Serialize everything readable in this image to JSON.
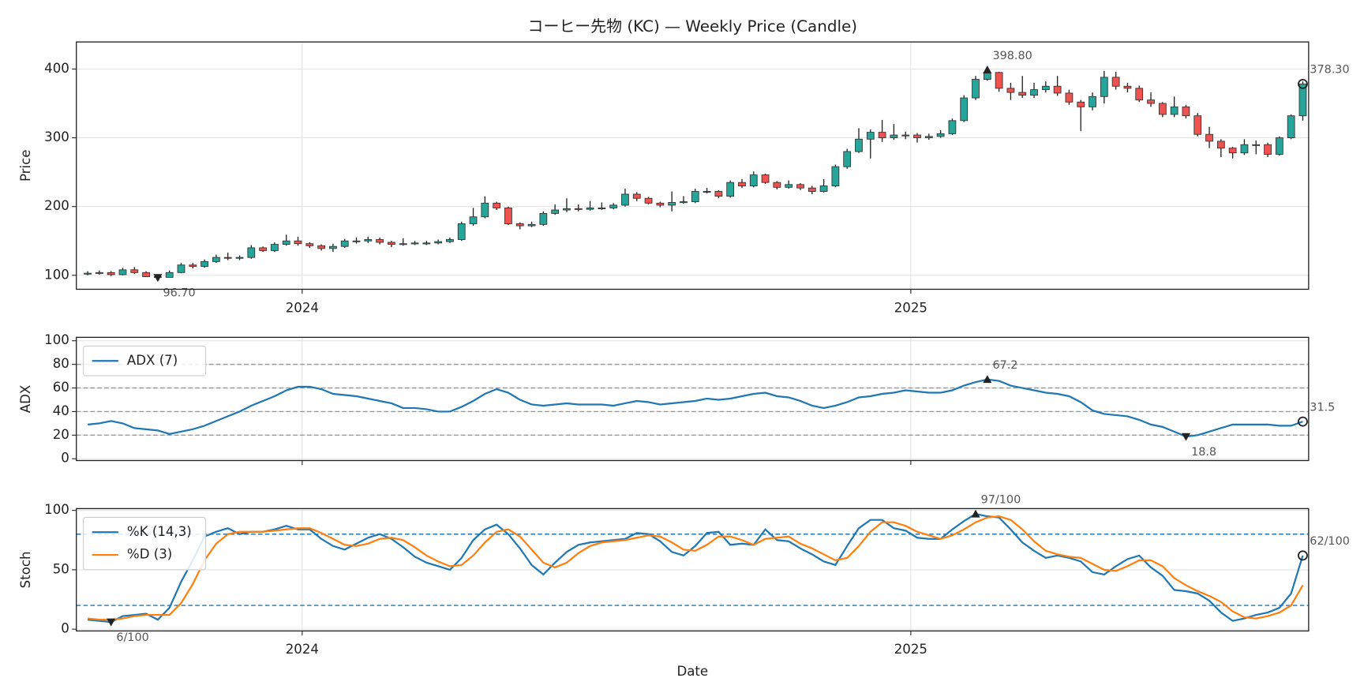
{
  "chart_data": [
    {
      "type": "candlestick",
      "title": "コーヒー先物 (KC) — Weekly Price (Candle)",
      "ylabel": "Price",
      "x": [
        0,
        1,
        2,
        3,
        4,
        5,
        6,
        7,
        8,
        9,
        10,
        11,
        12,
        13,
        14,
        15,
        16,
        17,
        18,
        19,
        20,
        21,
        22,
        23,
        24,
        25,
        26,
        27,
        28,
        29,
        30,
        31,
        32,
        33,
        34,
        35,
        36,
        37,
        38,
        39,
        40,
        41,
        42,
        43,
        44,
        45,
        46,
        47,
        48,
        49,
        50,
        51,
        52,
        53,
        54,
        55,
        56,
        57,
        58,
        59,
        60,
        61,
        62,
        63,
        64,
        65,
        66,
        67,
        68,
        69,
        70,
        71,
        72,
        73,
        74,
        75,
        76,
        77,
        78,
        79,
        80,
        81,
        82,
        83,
        84,
        85,
        86,
        87,
        88,
        89,
        90,
        91,
        92,
        93,
        94,
        95,
        96,
        97,
        98,
        99,
        100,
        101,
        102,
        103,
        104
      ],
      "open": [
        102,
        103,
        104,
        101,
        108,
        104,
        98,
        97,
        104,
        115,
        113,
        120,
        126,
        125,
        126,
        140,
        136,
        145,
        150,
        146,
        143,
        139,
        142,
        150,
        150,
        152,
        148,
        145,
        146,
        147,
        147,
        149,
        152,
        175,
        185,
        205,
        198,
        175,
        172,
        174,
        190,
        195,
        197,
        196,
        198,
        198,
        202,
        218,
        212,
        205,
        202,
        206,
        207,
        222,
        222,
        215,
        235,
        230,
        246,
        235,
        228,
        232,
        227,
        222,
        230,
        258,
        280,
        298,
        308,
        300,
        304,
        304,
        300,
        302,
        306,
        325,
        358,
        385,
        395,
        372,
        366,
        362,
        370,
        375,
        365,
        352,
        345,
        360,
        388,
        375,
        372,
        355,
        350,
        334,
        345,
        332,
        305,
        295,
        285,
        278,
        290,
        290,
        276,
        300,
        332
      ],
      "high": [
        106,
        107,
        106,
        111,
        112,
        106,
        100,
        107,
        118,
        118,
        123,
        130,
        133,
        129,
        144,
        142,
        148,
        159,
        156,
        148,
        145,
        146,
        153,
        155,
        156,
        155,
        150,
        154,
        150,
        150,
        152,
        155,
        178,
        198,
        215,
        207,
        200,
        177,
        178,
        193,
        203,
        212,
        203,
        208,
        206,
        205,
        226,
        221,
        214,
        207,
        222,
        215,
        226,
        227,
        224,
        238,
        240,
        251,
        248,
        237,
        238,
        234,
        230,
        240,
        261,
        284,
        314,
        312,
        326,
        320,
        309,
        307,
        306,
        311,
        328,
        362,
        390,
        398.8,
        396,
        380,
        390,
        380,
        382,
        390,
        370,
        355,
        366,
        397,
        396,
        380,
        376,
        366,
        352,
        360,
        348,
        336,
        316,
        298,
        287,
        298,
        296,
        293,
        302,
        334,
        382
      ],
      "low": [
        100,
        101,
        99,
        100,
        102,
        97.5,
        96.7,
        97.2,
        103,
        110,
        111,
        118,
        122,
        122,
        124,
        134,
        134,
        143,
        143,
        140,
        136,
        134,
        140,
        146,
        147,
        145,
        141,
        143,
        144,
        144,
        145,
        147,
        150,
        172,
        183,
        195,
        173,
        167,
        170,
        172,
        188,
        192,
        193,
        194,
        195,
        196,
        200,
        208,
        203,
        199,
        193,
        204,
        205,
        219,
        212,
        213,
        227,
        228,
        233,
        225,
        226,
        224,
        218,
        220,
        228,
        255,
        278,
        270,
        294,
        297,
        298,
        293,
        297,
        300,
        304,
        323,
        355,
        383,
        367,
        355,
        358,
        358,
        366,
        361,
        348,
        310,
        340,
        350,
        370,
        366,
        352,
        345,
        330,
        330,
        328,
        302,
        285,
        272,
        270,
        275,
        276,
        272,
        274,
        298,
        325
      ],
      "close": [
        103,
        104,
        101,
        108,
        104,
        98,
        97,
        104,
        115,
        113,
        120,
        126,
        125,
        126,
        140,
        136,
        145,
        150,
        146,
        143,
        139,
        142,
        150,
        150,
        152,
        148,
        145,
        146,
        147,
        147,
        149,
        152,
        175,
        185,
        205,
        198,
        175,
        172,
        174,
        190,
        195,
        197,
        196,
        198,
        198,
        202,
        218,
        212,
        205,
        202,
        206,
        207,
        222,
        222,
        215,
        235,
        230,
        246,
        235,
        228,
        232,
        227,
        222,
        230,
        258,
        280,
        298,
        308,
        300,
        304,
        304,
        300,
        302,
        306,
        325,
        358,
        385,
        395,
        372,
        366,
        362,
        370,
        375,
        365,
        352,
        345,
        360,
        388,
        375,
        372,
        355,
        350,
        334,
        345,
        332,
        305,
        295,
        285,
        278,
        290,
        290,
        276,
        300,
        332,
        378.3
      ],
      "up_color": "#26a69a",
      "down_color": "#ef5350",
      "xlim": [
        -0.97,
        104.5
      ],
      "xticks": [
        {
          "value": 18.36,
          "label": "2024"
        },
        {
          "value": 70.45,
          "label": "2025"
        }
      ],
      "ylim": [
        79.7,
        439.4
      ],
      "yticks": [
        100,
        200,
        300,
        400
      ],
      "grid": true,
      "annotations": [
        {
          "x": 6,
          "y": 96.7,
          "label": "96.70",
          "marker": "v"
        },
        {
          "x": 77,
          "y": 398.8,
          "label": "398.80",
          "marker": "^"
        },
        {
          "x": 104,
          "y": 378.3,
          "label": "378.30",
          "marker": "o"
        }
      ]
    },
    {
      "type": "line",
      "ylabel": "ADX",
      "x": [
        0,
        1,
        2,
        3,
        4,
        5,
        6,
        7,
        8,
        9,
        10,
        11,
        12,
        13,
        14,
        15,
        16,
        17,
        18,
        19,
        20,
        21,
        22,
        23,
        24,
        25,
        26,
        27,
        28,
        29,
        30,
        31,
        32,
        33,
        34,
        35,
        36,
        37,
        38,
        39,
        40,
        41,
        42,
        43,
        44,
        45,
        46,
        47,
        48,
        49,
        50,
        51,
        52,
        53,
        54,
        55,
        56,
        57,
        58,
        59,
        60,
        61,
        62,
        63,
        64,
        65,
        66,
        67,
        68,
        69,
        70,
        71,
        72,
        73,
        74,
        75,
        76,
        77,
        78,
        79,
        80,
        81,
        82,
        83,
        84,
        85,
        86,
        87,
        88,
        89,
        90,
        91,
        92,
        93,
        94,
        95,
        96,
        97,
        98,
        99,
        100,
        101,
        102,
        103,
        104
      ],
      "series": [
        {
          "name": "ADX (7)",
          "color": "#1f77b4",
          "values": [
            29,
            30,
            32,
            30,
            26,
            25,
            24,
            21,
            23,
            25,
            28,
            32,
            36,
            40,
            45,
            49,
            53,
            58,
            61,
            61,
            59,
            55,
            54,
            53,
            51,
            49,
            47,
            43,
            43,
            42,
            40,
            40,
            44,
            49,
            55,
            59,
            56,
            50,
            46,
            45,
            46,
            47,
            46,
            46,
            46,
            45,
            47,
            49,
            48,
            46,
            47,
            48,
            49,
            51,
            50,
            51,
            53,
            55,
            56,
            53,
            52,
            49,
            45,
            43,
            45,
            48,
            52,
            53,
            55,
            56,
            58,
            57,
            56,
            56,
            58,
            62,
            65,
            67.2,
            66,
            62,
            60,
            58,
            56,
            55,
            53,
            48,
            41,
            38,
            37,
            36,
            33,
            29,
            27,
            23,
            18.8,
            20,
            23,
            26,
            29,
            29,
            29,
            29,
            28,
            28,
            31.5
          ]
        }
      ],
      "xlim": [
        -0.97,
        104.5
      ],
      "ylim": [
        -1.5,
        102.9
      ],
      "yticks": [
        0,
        20,
        40,
        60,
        80,
        100
      ],
      "grid": true,
      "hlines": [
        20,
        40,
        60,
        80
      ],
      "hline_color": "#999999",
      "legend": "upper left",
      "annotations": [
        {
          "x": 77,
          "y": 67.2,
          "label": "67.2",
          "marker": "^"
        },
        {
          "x": 94,
          "y": 18.8,
          "label": "18.8",
          "marker": "v"
        },
        {
          "x": 104,
          "y": 31.5,
          "label": "31.5",
          "marker": "o"
        }
      ]
    },
    {
      "type": "line",
      "ylabel": "Stoch",
      "xlabel": "Date",
      "x": [
        0,
        1,
        2,
        3,
        4,
        5,
        6,
        7,
        8,
        9,
        10,
        11,
        12,
        13,
        14,
        15,
        16,
        17,
        18,
        19,
        20,
        21,
        22,
        23,
        24,
        25,
        26,
        27,
        28,
        29,
        30,
        31,
        32,
        33,
        34,
        35,
        36,
        37,
        38,
        39,
        40,
        41,
        42,
        43,
        44,
        45,
        46,
        47,
        48,
        49,
        50,
        51,
        52,
        53,
        54,
        55,
        56,
        57,
        58,
        59,
        60,
        61,
        62,
        63,
        64,
        65,
        66,
        67,
        68,
        69,
        70,
        71,
        72,
        73,
        74,
        75,
        76,
        77,
        78,
        79,
        80,
        81,
        82,
        83,
        84,
        85,
        86,
        87,
        88,
        89,
        90,
        91,
        92,
        93,
        94,
        95,
        96,
        97,
        98,
        99,
        100,
        101,
        102,
        103,
        104
      ],
      "series": [
        {
          "name": "%K (14,3)",
          "color": "#1f77b4",
          "values": [
            8,
            7,
            6,
            11,
            12,
            13,
            8,
            18,
            40,
            58,
            78,
            82,
            85,
            80,
            82,
            82,
            84,
            87,
            84,
            84,
            76,
            70,
            67,
            72,
            77,
            80,
            76,
            69,
            61,
            56,
            53,
            50,
            60,
            75,
            84,
            88,
            80,
            68,
            54,
            46,
            56,
            65,
            71,
            73,
            74,
            75,
            76,
            81,
            80,
            74,
            65,
            62,
            70,
            81,
            82,
            71,
            72,
            71,
            84,
            75,
            74,
            68,
            63,
            57,
            54,
            70,
            85,
            92,
            92,
            85,
            83,
            77,
            76,
            76,
            84,
            91,
            97,
            95,
            94,
            84,
            73,
            66,
            60,
            62,
            60,
            57,
            48,
            46,
            53,
            59,
            62,
            52,
            45,
            33,
            32,
            30,
            24,
            14,
            7,
            9,
            12,
            14,
            18,
            30,
            62
          ]
        },
        {
          "name": "%D (3)",
          "color": "#ff7f0e",
          "values": [
            9,
            8,
            8,
            9,
            11,
            12,
            12,
            12,
            22,
            38,
            58,
            72,
            80,
            82,
            82,
            82,
            83,
            84,
            85,
            85,
            81,
            76,
            71,
            70,
            72,
            76,
            77,
            75,
            69,
            62,
            57,
            53,
            54,
            62,
            73,
            82,
            84,
            78,
            67,
            56,
            52,
            56,
            64,
            70,
            73,
            74,
            75,
            77,
            79,
            78,
            73,
            67,
            66,
            71,
            78,
            78,
            75,
            71,
            76,
            77,
            78,
            72,
            68,
            63,
            58,
            60,
            70,
            82,
            90,
            90,
            87,
            82,
            79,
            76,
            79,
            84,
            90,
            94,
            95,
            92,
            84,
            74,
            66,
            63,
            61,
            60,
            55,
            50,
            49,
            53,
            58,
            58,
            53,
            43,
            37,
            32,
            28,
            23,
            15,
            10,
            9,
            11,
            14,
            20,
            37
          ]
        }
      ],
      "xlim": [
        -0.97,
        104.5
      ],
      "xticks": [
        {
          "value": 18.36,
          "label": "2024"
        },
        {
          "value": 70.45,
          "label": "2025"
        }
      ],
      "ylim": [
        -1.5,
        101.5
      ],
      "yticks": [
        0,
        50,
        100
      ],
      "grid": true,
      "hlines": [
        20,
        80
      ],
      "hline_color": "#1f77b4",
      "legend": "upper left",
      "annotations": [
        {
          "x": 2,
          "y": 6,
          "label": "6/100",
          "marker": "v"
        },
        {
          "x": 76,
          "y": 97,
          "label": "97/100",
          "marker": "^"
        },
        {
          "x": 104,
          "y": 62,
          "label": "62/100",
          "marker": "o"
        }
      ]
    }
  ]
}
